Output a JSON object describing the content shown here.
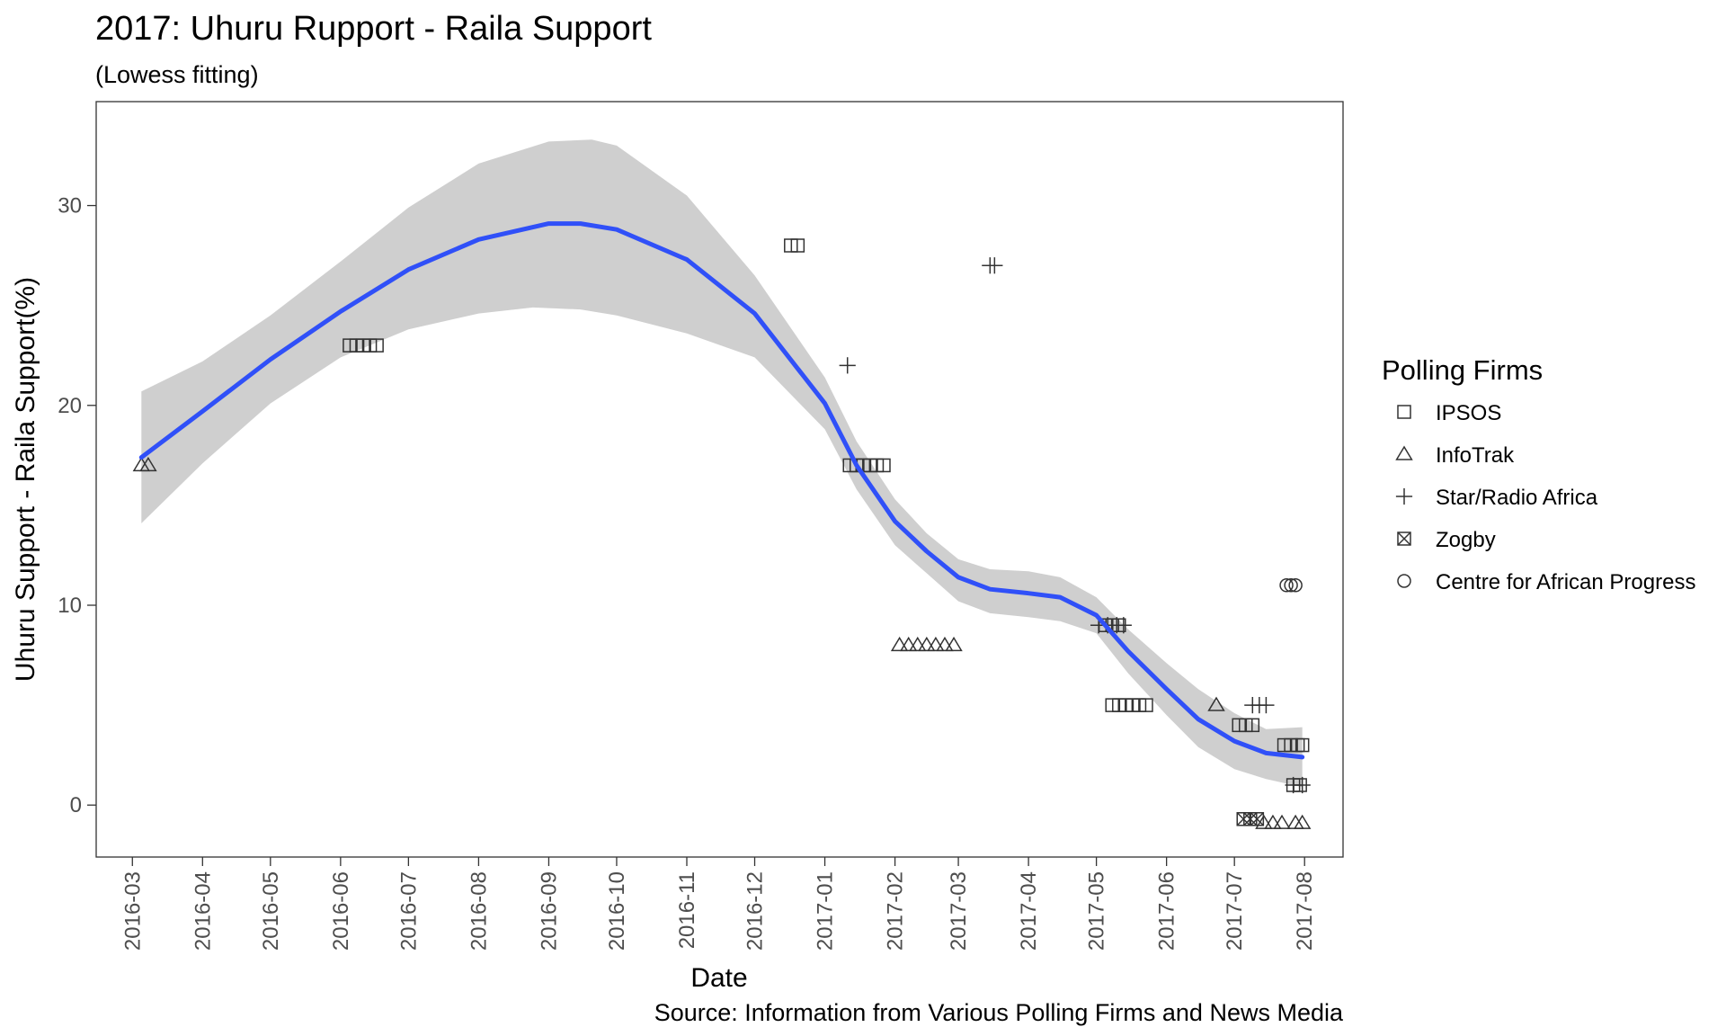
{
  "chart_data": {
    "type": "scatter",
    "title": "2017: Uhuru Rupport - Raila Support",
    "subtitle": "(Lowess fitting)",
    "xlabel": "Date",
    "ylabel": "Uhuru Support - Raila Support(%)",
    "caption": "Source: Information from Various Polling Firms and News Media",
    "x_ticks": [
      "2016-03",
      "2016-04",
      "2016-05",
      "2016-06",
      "2016-07",
      "2016-08",
      "2016-09",
      "2016-10",
      "2016-11",
      "2016-12",
      "2017-01",
      "2017-02",
      "2017-03",
      "2017-04",
      "2017-05",
      "2017-06",
      "2017-07",
      "2017-08"
    ],
    "y_ticks": [
      0,
      10,
      20,
      30
    ],
    "xlim": [
      "2016-02-14",
      "2017-08-18"
    ],
    "ylim": [
      -2.6,
      35.2
    ],
    "grid": false,
    "legend": {
      "title": "Polling Firms",
      "position": "right",
      "entries": [
        {
          "name": "IPSOS",
          "shape": "square-open"
        },
        {
          "name": "InfoTrak",
          "shape": "triangle-open"
        },
        {
          "name": "Star/Radio Africa",
          "shape": "plus"
        },
        {
          "name": "Zogby",
          "shape": "square-cross"
        },
        {
          "name": "Centre for African Progress",
          "shape": "circle-open"
        }
      ]
    },
    "series": [
      {
        "name": "IPSOS",
        "points": [
          [
            "2016-06-05",
            23
          ],
          [
            "2016-06-08",
            23
          ],
          [
            "2016-06-11",
            23
          ],
          [
            "2016-06-14",
            23
          ],
          [
            "2016-06-17",
            23
          ],
          [
            "2016-12-17",
            28
          ],
          [
            "2016-12-20",
            28
          ],
          [
            "2017-01-12",
            17
          ],
          [
            "2017-01-15",
            17
          ],
          [
            "2017-01-18",
            17
          ],
          [
            "2017-01-21",
            17
          ],
          [
            "2017-01-24",
            17
          ],
          [
            "2017-01-27",
            17
          ],
          [
            "2017-05-05",
            9
          ],
          [
            "2017-05-08",
            9
          ],
          [
            "2017-05-11",
            9
          ],
          [
            "2017-05-08",
            5
          ],
          [
            "2017-05-11",
            5
          ],
          [
            "2017-05-14",
            5
          ],
          [
            "2017-05-17",
            5
          ],
          [
            "2017-05-20",
            5
          ],
          [
            "2017-05-23",
            5
          ],
          [
            "2017-07-03",
            4
          ],
          [
            "2017-07-06",
            4
          ],
          [
            "2017-07-09",
            4
          ],
          [
            "2017-07-23",
            3
          ],
          [
            "2017-07-26",
            3
          ],
          [
            "2017-07-29",
            3
          ],
          [
            "2017-07-31",
            3
          ],
          [
            "2017-07-27",
            1
          ],
          [
            "2017-07-30",
            1
          ]
        ]
      },
      {
        "name": "InfoTrak",
        "points": [
          [
            "2016-03-05",
            17
          ],
          [
            "2016-03-08",
            17
          ],
          [
            "2017-02-03",
            8
          ],
          [
            "2017-02-07",
            8
          ],
          [
            "2017-02-11",
            8
          ],
          [
            "2017-02-15",
            8
          ],
          [
            "2017-02-19",
            8
          ],
          [
            "2017-02-23",
            8
          ],
          [
            "2017-02-27",
            8
          ],
          [
            "2017-06-23",
            5
          ],
          [
            "2017-07-14",
            -0.9
          ],
          [
            "2017-07-18",
            -0.9
          ],
          [
            "2017-07-22",
            -0.9
          ],
          [
            "2017-07-28",
            -0.9
          ],
          [
            "2017-07-31",
            -0.9
          ]
        ]
      },
      {
        "name": "Star/Radio Africa",
        "points": [
          [
            "2017-01-11",
            22
          ],
          [
            "2017-03-15",
            27
          ],
          [
            "2017-03-17",
            27
          ],
          [
            "2017-05-02",
            9
          ],
          [
            "2017-05-06",
            9
          ],
          [
            "2017-05-10",
            9
          ],
          [
            "2017-05-13",
            9
          ],
          [
            "2017-07-09",
            5
          ],
          [
            "2017-07-12",
            5
          ],
          [
            "2017-07-15",
            5
          ],
          [
            "2017-07-27",
            1
          ],
          [
            "2017-07-31",
            1
          ]
        ]
      },
      {
        "name": "Zogby",
        "points": [
          [
            "2017-07-05",
            -0.7
          ],
          [
            "2017-07-08",
            -0.7
          ],
          [
            "2017-07-11",
            -0.7
          ]
        ]
      },
      {
        "name": "Centre for African Progress",
        "points": [
          [
            "2017-07-24",
            11
          ],
          [
            "2017-07-26",
            11
          ],
          [
            "2017-07-28",
            11
          ]
        ]
      }
    ],
    "fit": {
      "method": "lowess",
      "color": "#3050F8",
      "band_color": "#cccccc",
      "line": [
        [
          "2016-03-05",
          17.4
        ],
        [
          "2016-04-01",
          19.7
        ],
        [
          "2016-05-01",
          22.3
        ],
        [
          "2016-06-01",
          24.7
        ],
        [
          "2016-07-01",
          26.8
        ],
        [
          "2016-08-01",
          28.3
        ],
        [
          "2016-09-01",
          29.1
        ],
        [
          "2016-09-15",
          29.1
        ],
        [
          "2016-10-01",
          28.8
        ],
        [
          "2016-11-01",
          27.3
        ],
        [
          "2016-12-01",
          24.6
        ],
        [
          "2017-01-01",
          20.1
        ],
        [
          "2017-01-15",
          17.0
        ],
        [
          "2017-02-01",
          14.2
        ],
        [
          "2017-02-15",
          12.7
        ],
        [
          "2017-03-01",
          11.4
        ],
        [
          "2017-03-15",
          10.8
        ],
        [
          "2017-04-01",
          10.6
        ],
        [
          "2017-04-15",
          10.4
        ],
        [
          "2017-05-01",
          9.5
        ],
        [
          "2017-05-15",
          7.7
        ],
        [
          "2017-06-01",
          5.8
        ],
        [
          "2017-06-15",
          4.3
        ],
        [
          "2017-07-01",
          3.2
        ],
        [
          "2017-07-15",
          2.6
        ],
        [
          "2017-07-31",
          2.4
        ]
      ],
      "upper": [
        [
          "2016-03-05",
          20.7
        ],
        [
          "2016-04-01",
          22.2
        ],
        [
          "2016-05-01",
          24.5
        ],
        [
          "2016-06-01",
          27.2
        ],
        [
          "2016-07-01",
          29.9
        ],
        [
          "2016-08-01",
          32.1
        ],
        [
          "2016-09-01",
          33.2
        ],
        [
          "2016-09-20",
          33.3
        ],
        [
          "2016-10-01",
          33.0
        ],
        [
          "2016-11-01",
          30.5
        ],
        [
          "2016-12-01",
          26.5
        ],
        [
          "2017-01-01",
          21.4
        ],
        [
          "2017-01-15",
          18.2
        ],
        [
          "2017-02-01",
          15.3
        ],
        [
          "2017-02-15",
          13.6
        ],
        [
          "2017-03-01",
          12.3
        ],
        [
          "2017-03-15",
          11.8
        ],
        [
          "2017-04-01",
          11.7
        ],
        [
          "2017-04-15",
          11.4
        ],
        [
          "2017-05-01",
          10.4
        ],
        [
          "2017-05-15",
          8.8
        ],
        [
          "2017-06-01",
          7.1
        ],
        [
          "2017-06-15",
          5.8
        ],
        [
          "2017-07-01",
          4.6
        ],
        [
          "2017-07-15",
          3.8
        ],
        [
          "2017-07-31",
          3.9
        ]
      ],
      "lower": [
        [
          "2016-03-05",
          14.1
        ],
        [
          "2016-04-01",
          17.1
        ],
        [
          "2016-05-01",
          20.1
        ],
        [
          "2016-06-01",
          22.4
        ],
        [
          "2016-07-01",
          23.8
        ],
        [
          "2016-08-01",
          24.6
        ],
        [
          "2016-08-25",
          24.9
        ],
        [
          "2016-09-15",
          24.8
        ],
        [
          "2016-10-01",
          24.5
        ],
        [
          "2016-11-01",
          23.6
        ],
        [
          "2016-12-01",
          22.4
        ],
        [
          "2017-01-01",
          18.8
        ],
        [
          "2017-01-15",
          15.8
        ],
        [
          "2017-02-01",
          13.0
        ],
        [
          "2017-02-15",
          11.6
        ],
        [
          "2017-03-01",
          10.2
        ],
        [
          "2017-03-15",
          9.6
        ],
        [
          "2017-04-01",
          9.4
        ],
        [
          "2017-04-15",
          9.2
        ],
        [
          "2017-05-01",
          8.6
        ],
        [
          "2017-05-15",
          6.6
        ],
        [
          "2017-06-01",
          4.5
        ],
        [
          "2017-06-15",
          2.9
        ],
        [
          "2017-07-01",
          1.8
        ],
        [
          "2017-07-15",
          1.3
        ],
        [
          "2017-07-31",
          0.9
        ]
      ]
    }
  }
}
